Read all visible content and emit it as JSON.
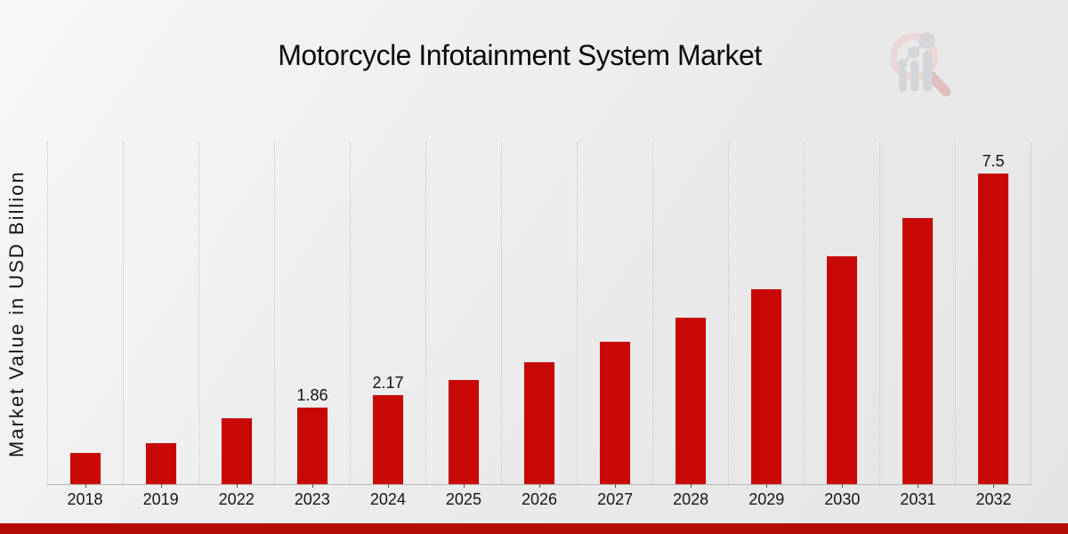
{
  "title": "Motorcycle Infotainment System Market",
  "chart_data": {
    "type": "bar",
    "title": "Motorcycle Infotainment System Market",
    "xlabel": "",
    "ylabel": "Market Value in USD Billion",
    "categories": [
      "2018",
      "2019",
      "2022",
      "2023",
      "2024",
      "2025",
      "2026",
      "2027",
      "2028",
      "2029",
      "2030",
      "2031",
      "2032"
    ],
    "values": [
      0.78,
      1.01,
      1.61,
      1.86,
      2.17,
      2.53,
      2.96,
      3.46,
      4.04,
      4.72,
      5.51,
      6.43,
      7.5
    ],
    "bar_labels": [
      "",
      "",
      "",
      "1.86",
      "2.17",
      "",
      "",
      "",
      "",
      "",
      "",
      "",
      "7.5"
    ],
    "ylim": [
      0,
      8.25
    ],
    "yticks": "none",
    "grid": "vertical-dotted",
    "legend": "none",
    "bar_color": "#c70804"
  },
  "colors": {
    "bar": "#c70804",
    "footer_stripe": "#b30b04",
    "gridline": "#c6c6c6",
    "axis_line": "#b9b9b9",
    "text": "#111111",
    "logo_ring": "#ecd6d6",
    "logo_handle": "#e0bfbf",
    "logo_gray": "#d4d5d9"
  },
  "logo": {
    "name": "magnifier-bar-chart-logo"
  }
}
